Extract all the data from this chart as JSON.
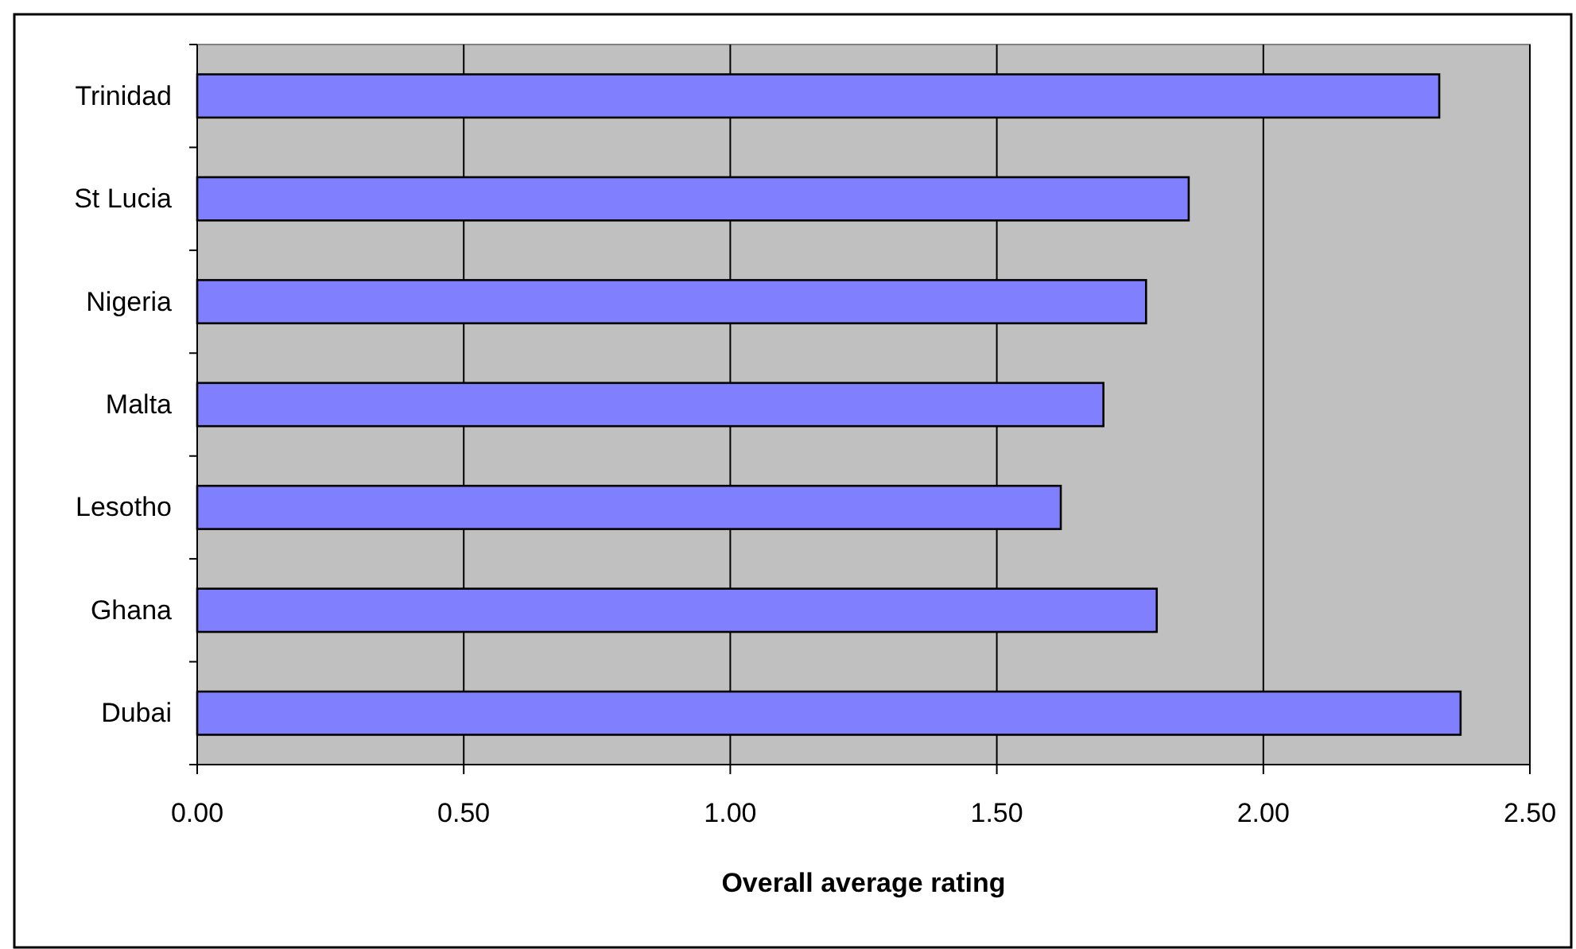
{
  "chart_data": {
    "type": "bar",
    "orientation": "horizontal",
    "xlabel": "Overall average rating",
    "categories": [
      "Trinidad",
      "St Lucia",
      "Nigeria",
      "Malta",
      "Lesotho",
      "Ghana",
      "Dubai"
    ],
    "values": [
      2.33,
      1.86,
      1.78,
      1.7,
      1.62,
      1.8,
      2.37
    ],
    "color": "#8080ff",
    "xlim": [
      0,
      2.5
    ],
    "xticks": [
      {
        "value": 0,
        "label": "0.00"
      },
      {
        "value": 0.5,
        "label": "0.50"
      },
      {
        "value": 1,
        "label": "1.00"
      },
      {
        "value": 1.5,
        "label": "1.50"
      },
      {
        "value": 2,
        "label": "2.00"
      },
      {
        "value": 2.5,
        "label": "2.50"
      }
    ],
    "grid": "x"
  }
}
